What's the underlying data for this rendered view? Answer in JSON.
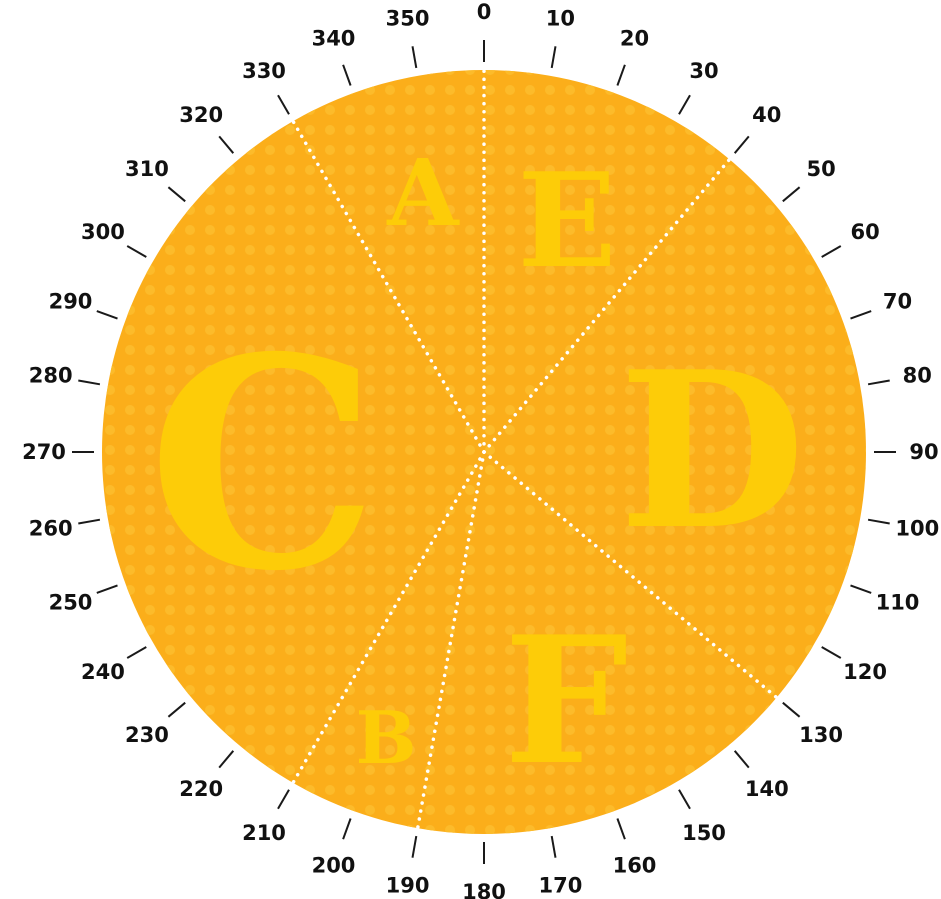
{
  "dial": {
    "tick_step_degrees": 10,
    "tick_labels": [
      "0",
      "10",
      "20",
      "30",
      "40",
      "50",
      "60",
      "70",
      "80",
      "90",
      "100",
      "110",
      "120",
      "130",
      "140",
      "150",
      "160",
      "170",
      "180",
      "190",
      "200",
      "210",
      "220",
      "230",
      "240",
      "250",
      "260",
      "270",
      "280",
      "290",
      "300",
      "310",
      "320",
      "330",
      "340",
      "350"
    ],
    "divider_angles_degrees": [
      0,
      40,
      130,
      190,
      210,
      330
    ]
  },
  "sectors": [
    {
      "letter": "A",
      "from_degrees": 330,
      "to_degrees": 360
    },
    {
      "letter": "E",
      "from_degrees": 0,
      "to_degrees": 40
    },
    {
      "letter": "D",
      "from_degrees": 40,
      "to_degrees": 130
    },
    {
      "letter": "F",
      "from_degrees": 130,
      "to_degrees": 190
    },
    {
      "letter": "B",
      "from_degrees": 190,
      "to_degrees": 210
    },
    {
      "letter": "C",
      "from_degrees": 210,
      "to_degrees": 330
    }
  ],
  "colors": {
    "disc": "#FBAE1A",
    "dots": "#FCBB2A",
    "letters": "#FDCC08",
    "dividers": "#FFFFFF",
    "ticks": "#1A1A1A"
  }
}
